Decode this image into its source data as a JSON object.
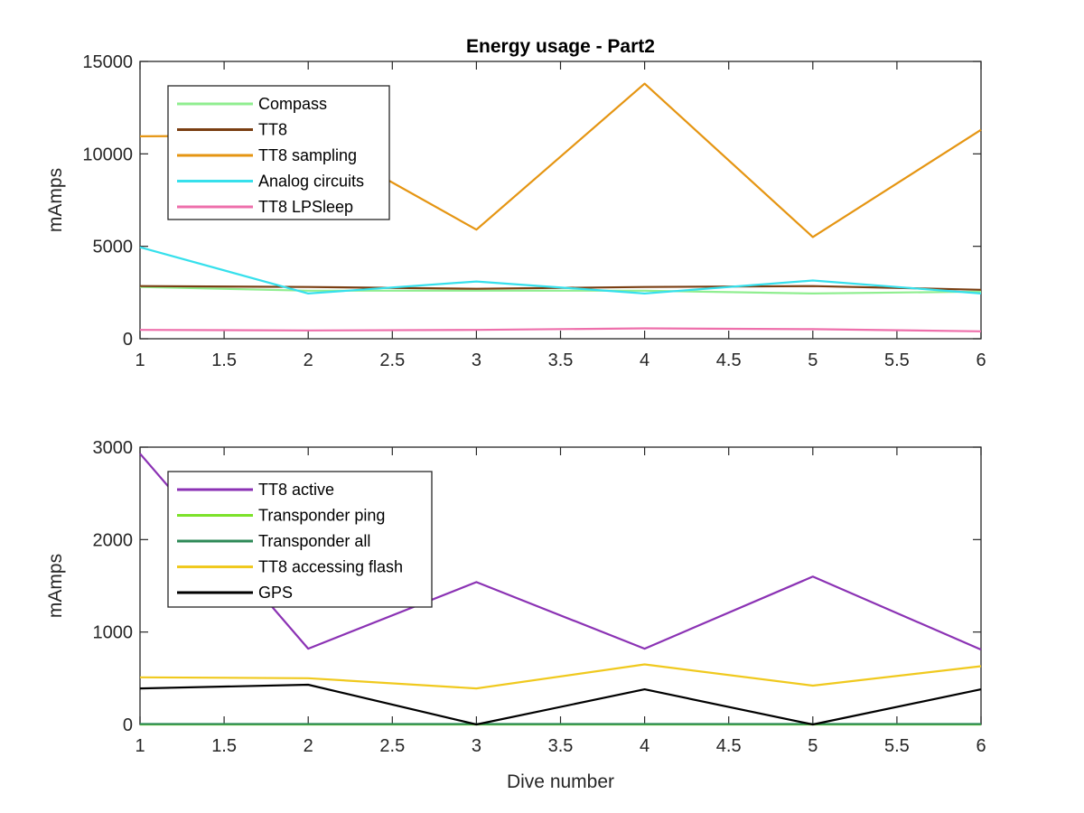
{
  "chart_data": [
    {
      "type": "line",
      "title": "Energy usage - Part2",
      "xlabel": "",
      "ylabel": "mAmps",
      "xlim": [
        1,
        6
      ],
      "ylim": [
        0,
        15000
      ],
      "x_ticks": [
        "1",
        "1.5",
        "2",
        "2.5",
        "3",
        "3.5",
        "4",
        "4.5",
        "5",
        "5.5",
        "6"
      ],
      "y_ticks": [
        "0",
        "5000",
        "10000",
        "15000"
      ],
      "x": [
        1,
        2,
        3,
        4,
        5,
        6
      ],
      "legend_location": "top-left",
      "series": [
        {
          "name": "Compass",
          "color": "#90ee90",
          "values": [
            2800,
            2600,
            2600,
            2600,
            2450,
            2550
          ]
        },
        {
          "name": "TT8",
          "color": "#7a3e12",
          "values": [
            2850,
            2800,
            2700,
            2800,
            2850,
            2650
          ]
        },
        {
          "name": "TT8 sampling",
          "color": "#e59512",
          "values": [
            10950,
            11000,
            5900,
            13800,
            5500,
            11300
          ]
        },
        {
          "name": "Analog circuits",
          "color": "#36e0ec",
          "values": [
            4950,
            2450,
            3100,
            2450,
            3150,
            2450
          ]
        },
        {
          "name": "TT8 LPSleep",
          "color": "#ee6fab",
          "values": [
            480,
            450,
            480,
            560,
            520,
            400
          ]
        }
      ]
    },
    {
      "type": "line",
      "title": "",
      "xlabel": "Dive number",
      "ylabel": "mAmps",
      "xlim": [
        1,
        6
      ],
      "ylim": [
        0,
        3000
      ],
      "x_ticks": [
        "1",
        "1.5",
        "2",
        "2.5",
        "3",
        "3.5",
        "4",
        "4.5",
        "5",
        "5.5",
        "6"
      ],
      "y_ticks": [
        "0",
        "1000",
        "2000",
        "3000"
      ],
      "x": [
        1,
        2,
        3,
        4,
        5,
        6
      ],
      "legend_location": "top-left",
      "series": [
        {
          "name": "TT8 active",
          "color": "#8b32b4",
          "values": [
            2930,
            820,
            1540,
            820,
            1600,
            810
          ]
        },
        {
          "name": "Transponder ping",
          "color": "#7ce22a",
          "values": [
            0,
            0,
            0,
            0,
            0,
            0
          ]
        },
        {
          "name": "Transponder all",
          "color": "#2e8a57",
          "values": [
            5,
            5,
            5,
            5,
            5,
            5
          ]
        },
        {
          "name": "TT8 accessing flash",
          "color": "#f0c91e",
          "values": [
            510,
            500,
            390,
            650,
            420,
            630
          ]
        },
        {
          "name": "GPS",
          "color": "#000000",
          "values": [
            390,
            430,
            0,
            380,
            0,
            380
          ]
        }
      ]
    }
  ]
}
